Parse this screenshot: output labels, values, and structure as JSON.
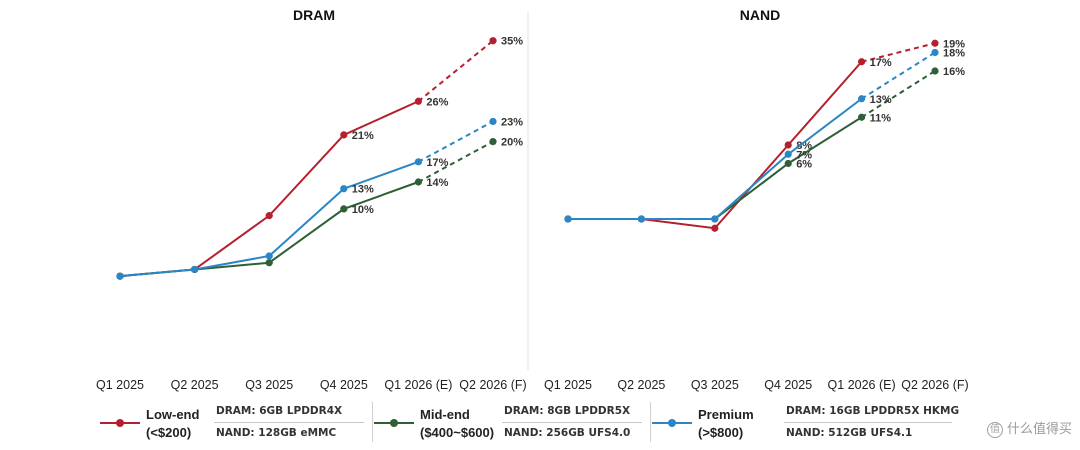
{
  "chart_data": [
    {
      "type": "line",
      "title": "DRAM",
      "categories": [
        "Q1 2025",
        "Q2 2025",
        "Q3 2025",
        "Q4 2025",
        "Q1 2026 (E)",
        "Q2 2026 (F)"
      ],
      "series": [
        {
          "name": "Low-end (<$200)",
          "color": "#b5202e",
          "values": [
            100,
            101,
            109,
            121,
            126,
            135
          ],
          "labels": [
            "",
            "",
            "",
            "21%",
            "26%",
            "35%"
          ],
          "forecast_from_index": 4
        },
        {
          "name": "Mid-end ($400~$600)",
          "color": "#2f5f35",
          "values": [
            100,
            101,
            102,
            110,
            114,
            120
          ],
          "labels": [
            "",
            "",
            "",
            "10%",
            "14%",
            "20%"
          ],
          "forecast_from_index": 4
        },
        {
          "name": "Premium (>$800)",
          "color": "#2a86c4",
          "values": [
            100,
            101,
            103,
            113,
            117,
            123
          ],
          "labels": [
            "",
            "",
            "",
            "13%",
            "17%",
            "23%"
          ],
          "forecast_from_index": 4
        }
      ]
    },
    {
      "type": "line",
      "title": "NAND",
      "categories": [
        "Q1 2025",
        "Q2 2025",
        "Q3 2025",
        "Q4 2025",
        "Q1 2026 (E)",
        "Q2 2026 (F)"
      ],
      "series": [
        {
          "name": "Low-end (<$200)",
          "color": "#b5202e",
          "values": [
            100,
            100,
            99,
            108,
            117,
            119
          ],
          "labels": [
            "",
            "",
            "",
            "8%",
            "17%",
            "19%"
          ],
          "forecast_from_index": 4
        },
        {
          "name": "Mid-end ($400~$600)",
          "color": "#2f5f35",
          "values": [
            100,
            100,
            100,
            106,
            111,
            116
          ],
          "labels": [
            "",
            "",
            "",
            "6%",
            "11%",
            "16%"
          ],
          "forecast_from_index": 4
        },
        {
          "name": "Premium (>$800)",
          "color": "#2a86c4",
          "values": [
            100,
            100,
            100,
            107,
            113,
            118
          ],
          "labels": [
            "",
            "",
            "",
            "7%",
            "13%",
            "18%"
          ],
          "forecast_from_index": 4
        }
      ]
    }
  ],
  "legend": [
    {
      "name_line1": "Low-end",
      "name_line2": "(<$200)",
      "color": "#b5202e",
      "dram": "DRAM: 6GB LPDDR4X",
      "nand": "NAND: 128GB eMMC"
    },
    {
      "name_line1": "Mid-end",
      "name_line2": "($400~$600)",
      "color": "#2f5f35",
      "dram": "DRAM: 8GB LPDDR5X",
      "nand": "NAND: 256GB UFS4.0"
    },
    {
      "name_line1": "Premium",
      "name_line2": "(>$800)",
      "color": "#2a86c4",
      "dram": "DRAM: 16GB LPDDR5X HKMG",
      "nand": "NAND: 512GB UFS4.1"
    }
  ],
  "watermark": {
    "icon": "值",
    "text": "什么值得买"
  }
}
